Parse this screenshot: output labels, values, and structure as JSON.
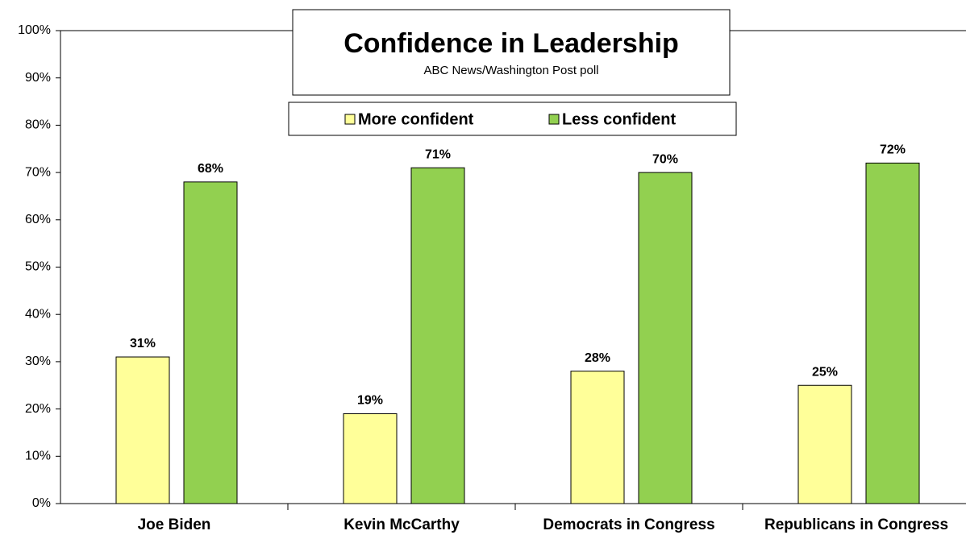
{
  "chart_data": {
    "type": "bar",
    "title": "Confidence in Leadership",
    "subtitle": "ABC News/Washington  Post poll",
    "categories": [
      "Joe Biden",
      "Kevin McCarthy",
      "Democrats in Congress",
      "Republicans in Congress"
    ],
    "series": [
      {
        "name": "More confident",
        "color": "#ffff99",
        "values": [
          31,
          19,
          28,
          25
        ],
        "value_labels": [
          "31%",
          "19%",
          "28%",
          "25%"
        ]
      },
      {
        "name": "Less confident",
        "color": "#92d050",
        "values": [
          68,
          71,
          70,
          72
        ],
        "value_labels": [
          "68%",
          "71%",
          "70%",
          "72%"
        ]
      }
    ],
    "ylim": [
      0,
      100
    ],
    "yticks": [
      {
        "value": 0,
        "label": "0%"
      },
      {
        "value": 10,
        "label": "10%"
      },
      {
        "value": 20,
        "label": "20%"
      },
      {
        "value": 30,
        "label": "30%"
      },
      {
        "value": 40,
        "label": "40%"
      },
      {
        "value": 50,
        "label": "50%"
      },
      {
        "value": 60,
        "label": "60%"
      },
      {
        "value": 70,
        "label": "70%"
      },
      {
        "value": 80,
        "label": "80%"
      },
      {
        "value": 90,
        "label": "90%"
      },
      {
        "value": 100,
        "label": "100%"
      }
    ]
  }
}
